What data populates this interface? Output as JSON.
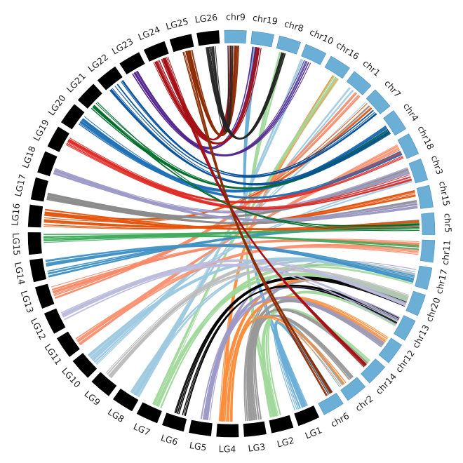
{
  "chart_data": {
    "type": "chord",
    "title": "",
    "chromosome_sets": [
      {
        "name": "",
        "color": "#000000",
        "labels": [
          "LG1",
          "LG2",
          "LG3",
          "LG4",
          "LG5",
          "LG6",
          "LG7",
          "LG8",
          "LG9",
          "LG10",
          "LG11",
          "LG12",
          "LG13",
          "LG14",
          "LG15",
          "LG16",
          "LG17",
          "LG18",
          "LG19",
          "LG20",
          "LG21",
          "LG22",
          "LG23",
          "LG24",
          "LG25",
          "LG26"
        ]
      },
      {
        "name": "",
        "color": "#6baed6",
        "labels": [
          "chr9",
          "chr19",
          "chr8",
          "chr10",
          "chr16",
          "chr1",
          "chr7",
          "chr4",
          "chr18",
          "chr3",
          "chr15",
          "chr5",
          "chr11",
          "chr17",
          "chr20",
          "chr13",
          "chr12",
          "chr14",
          "chr2",
          "chr6"
        ]
      }
    ],
    "link_colors": {
      "LG1": "#6baed6",
      "LG2": "#a1d99b",
      "LG3": "#999999",
      "LG4": "#fd8d3c",
      "LG5": "#9e9ac8",
      "LG6": "#000000",
      "LG7": "#a1d99b",
      "LG8": "#9ecae1",
      "LG9": "#bdbdbd",
      "LG10": "#9ecae1",
      "LG11": "#fc9272",
      "LG12": "#bcbddc",
      "LG13": "#fa8b6a",
      "LG14": "#4292c6",
      "LG15": "#41ab5d",
      "LG16": "#e6550d",
      "LG17": "#8c8c8c",
      "LG18": "#9e9ac8",
      "LG19": "#de2d26",
      "LG20": "#2171b5",
      "LG21": "#006d2c",
      "LG22": "#08519c",
      "LG23": "#54278f",
      "LG24": "#a50f15",
      "LG25": "#8c2d04",
      "LG26": "#252525"
    },
    "links": [
      {
        "from": "LG1",
        "to": "chr6"
      },
      {
        "from": "LG1",
        "to": "chr2"
      },
      {
        "from": "LG1",
        "to": "chr19"
      },
      {
        "from": "LG2",
        "to": "chr14"
      },
      {
        "from": "LG2",
        "to": "chr13"
      },
      {
        "from": "LG2",
        "to": "chr8"
      },
      {
        "from": "LG3",
        "to": "chr2"
      },
      {
        "from": "LG3",
        "to": "chr14"
      },
      {
        "from": "LG3",
        "to": "chr12"
      },
      {
        "from": "LG3",
        "to": "chr20"
      },
      {
        "from": "LG4",
        "to": "chr2"
      },
      {
        "from": "LG4",
        "to": "chr12"
      },
      {
        "from": "LG4",
        "to": "chr16"
      },
      {
        "from": "LG4",
        "to": "chr20"
      },
      {
        "from": "LG5",
        "to": "chr13"
      },
      {
        "from": "LG5",
        "to": "chr17"
      },
      {
        "from": "LG5",
        "to": "chr12"
      },
      {
        "from": "LG6",
        "to": "chr13"
      },
      {
        "from": "LG6",
        "to": "chr20"
      },
      {
        "from": "LG7",
        "to": "chr20"
      },
      {
        "from": "LG7",
        "to": "chr16"
      },
      {
        "from": "LG7",
        "to": "chr17"
      },
      {
        "from": "LG8",
        "to": "chr10"
      },
      {
        "from": "LG8",
        "to": "chr1"
      },
      {
        "from": "LG8",
        "to": "chr17"
      },
      {
        "from": "LG9",
        "to": "chr17"
      },
      {
        "from": "LG9",
        "to": "chr20"
      },
      {
        "from": "LG10",
        "to": "chr7"
      },
      {
        "from": "LG10",
        "to": "chr3"
      },
      {
        "from": "LG10",
        "to": "chr17"
      },
      {
        "from": "LG11",
        "to": "chr11"
      },
      {
        "from": "LG11",
        "to": "chr18"
      },
      {
        "from": "LG12",
        "to": "chr20"
      },
      {
        "from": "LG12",
        "to": "chr13"
      },
      {
        "from": "LG13",
        "to": "chr11"
      },
      {
        "from": "LG13",
        "to": "chr1"
      },
      {
        "from": "LG14",
        "to": "chr5"
      },
      {
        "from": "LG14",
        "to": "chr17"
      },
      {
        "from": "LG15",
        "to": "chr5"
      },
      {
        "from": "LG15",
        "to": "chr11"
      },
      {
        "from": "LG16",
        "to": "chr15"
      },
      {
        "from": "LG16",
        "to": "chr5"
      },
      {
        "from": "LG16",
        "to": "chr7"
      },
      {
        "from": "LG17",
        "to": "chr3"
      },
      {
        "from": "LG17",
        "to": "chr15"
      },
      {
        "from": "LG18",
        "to": "chr3"
      },
      {
        "from": "LG18",
        "to": "chr15"
      },
      {
        "from": "LG19",
        "to": "chr18"
      },
      {
        "from": "LG19",
        "to": "chr3"
      },
      {
        "from": "LG20",
        "to": "chr18"
      },
      {
        "from": "LG20",
        "to": "chr4"
      },
      {
        "from": "LG21",
        "to": "chr4"
      },
      {
        "from": "LG21",
        "to": "chr5"
      },
      {
        "from": "LG22",
        "to": "chr7"
      },
      {
        "from": "LG22",
        "to": "chr4"
      },
      {
        "from": "LG23",
        "to": "chr10"
      },
      {
        "from": "LG23",
        "to": "chr19"
      },
      {
        "from": "LG24",
        "to": "chr9"
      },
      {
        "from": "LG24",
        "to": "chr19"
      },
      {
        "from": "LG24",
        "to": "chr14"
      },
      {
        "from": "LG25",
        "to": "chr9"
      },
      {
        "from": "LG25",
        "to": "chr6"
      },
      {
        "from": "LG26",
        "to": "chr9"
      },
      {
        "from": "LG26",
        "to": "chr8"
      }
    ]
  }
}
